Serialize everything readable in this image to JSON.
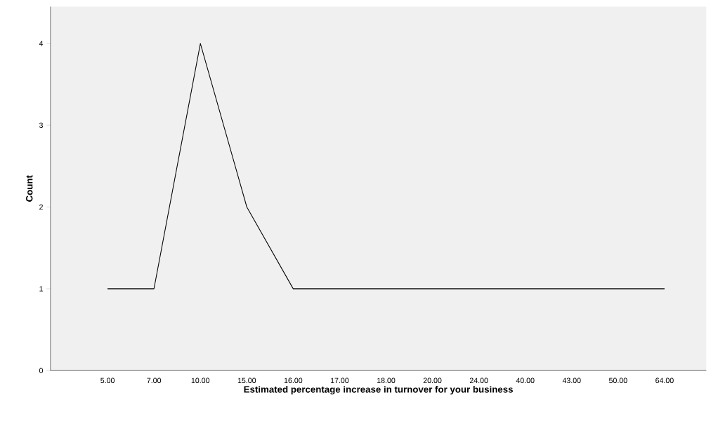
{
  "chart_data": {
    "type": "line",
    "categories": [
      "5.00",
      "7.00",
      "10.00",
      "15.00",
      "16.00",
      "17.00",
      "18.00",
      "20.00",
      "24.00",
      "40.00",
      "43.00",
      "50.00",
      "64.00"
    ],
    "values": [
      1,
      1,
      4,
      2,
      1,
      1,
      1,
      1,
      1,
      1,
      1,
      1,
      1
    ],
    "color": "#000000",
    "xlabel": "Estimated percentage increase in turnover for your business",
    "ylabel": "Count",
    "ylim": [
      0,
      4.45
    ],
    "yticks": [
      0,
      1,
      2,
      3,
      4
    ],
    "marker": "none",
    "line_style": "solid"
  }
}
